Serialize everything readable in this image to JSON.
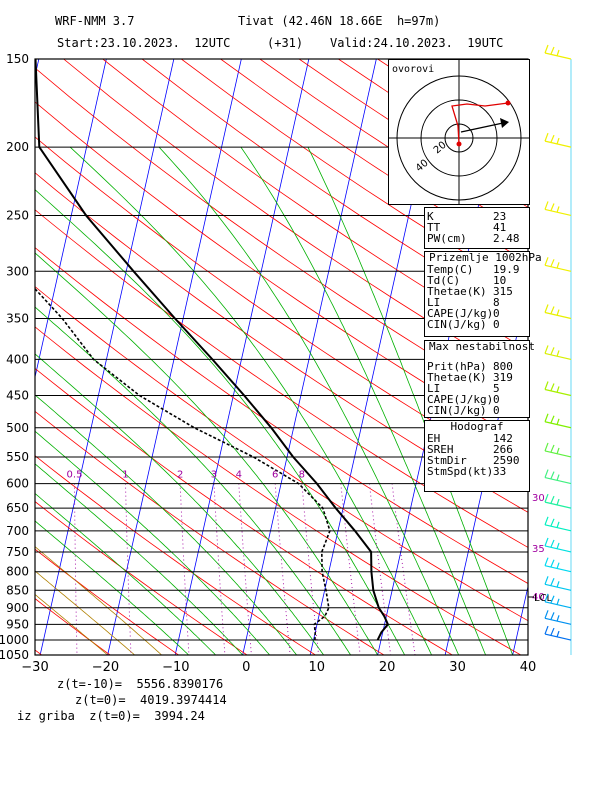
{
  "header": {
    "model": "WRF-NMM 3.7",
    "station": "Tivat (42.46N 18.66E  h=97m)",
    "start": "Start:23.10.2023.  12UTC",
    "lead": "(+31)",
    "valid": "Valid:24.10.2023.  19UTC"
  },
  "indices": {
    "rows": [
      {
        "k": "K",
        "v": "23"
      },
      {
        "k": "TT",
        "v": "41"
      },
      {
        "k": "PW(cm)",
        "v": "2.48"
      }
    ]
  },
  "surface": {
    "title": "Prizemlje 1002hPa",
    "rows": [
      {
        "k": "Temp(C)",
        "v": "19.9"
      },
      {
        "k": "Td(C)",
        "v": "10"
      },
      {
        "k": "Thetae(K)",
        "v": "315"
      },
      {
        "k": "LI",
        "v": "8"
      },
      {
        "k": "CAPE(J/kg)",
        "v": "0"
      },
      {
        "k": "CIN(J/kg)",
        "v": "0"
      }
    ]
  },
  "unstable": {
    "title": "Max nestabilnost",
    "rows": [
      {
        "k": "Prit(hPa)",
        "v": "800"
      },
      {
        "k": "Thetae(K)",
        "v": "319"
      },
      {
        "k": "LI",
        "v": "5"
      },
      {
        "k": "CAPE(J/kg)",
        "v": "0"
      },
      {
        "k": "CIN(J/kg)",
        "v": "0"
      }
    ]
  },
  "hodograph_panel": {
    "title": "Hodograf",
    "rows": [
      {
        "k": "EH",
        "v": "142"
      },
      {
        "k": "SREH",
        "v": "266"
      },
      {
        "k": "StmDir",
        "v": "2590"
      },
      {
        "k": "StmSpd(kt)",
        "v": "33"
      }
    ]
  },
  "hodograph": {
    "label": "ovorovi",
    "ring_labels": [
      "20",
      "40"
    ],
    "colors": {
      "wind": "#e00000",
      "storm": "#000000"
    }
  },
  "footer": {
    "line1": "z(t=-10)=  5556.8390176",
    "line2": "z(t=0)=  4019.3974414",
    "line3": "iz griba  z(t=0)=  3994.24"
  },
  "chart_data": {
    "type": "line",
    "subtype": "skew-T log-p diagram",
    "pressure_levels": [
      150,
      200,
      250,
      300,
      350,
      400,
      450,
      500,
      550,
      600,
      650,
      700,
      750,
      800,
      850,
      900,
      950,
      1000,
      1050
    ],
    "x_ticks": [
      "−30",
      "−20",
      "−10",
      "0",
      "10",
      "20",
      "30",
      "40"
    ],
    "xlim": [
      -30,
      40
    ],
    "ylim": [
      1050,
      150
    ],
    "mixing_ratio_labels": [
      "0.5",
      "1",
      "2",
      "3",
      "4",
      "6",
      "8"
    ],
    "temperature_label_values": [
      "30",
      "35",
      "40"
    ],
    "lcl_label": "LCL",
    "series": [
      {
        "role": "temperature",
        "color": "#000000",
        "points": [
          [
            1000,
            19.5
          ],
          [
            975,
            19.8
          ],
          [
            950,
            20.5
          ],
          [
            925,
            19.7
          ],
          [
            900,
            18.6
          ],
          [
            850,
            17.2
          ],
          [
            800,
            16.3
          ],
          [
            750,
            15.6
          ],
          [
            700,
            12.5
          ],
          [
            650,
            8.9
          ],
          [
            600,
            5.3
          ],
          [
            550,
            0.9
          ],
          [
            500,
            -3.3
          ],
          [
            450,
            -8.4
          ],
          [
            400,
            -14.3
          ],
          [
            350,
            -21.2
          ],
          [
            300,
            -28.9
          ],
          [
            250,
            -37.8
          ],
          [
            200,
            -47.0
          ],
          [
            150,
            -50.5
          ]
        ]
      },
      {
        "role": "dewpoint",
        "color": "#000000",
        "points": [
          [
            1000,
            10.2
          ],
          [
            975,
            10.0
          ],
          [
            950,
            9.6
          ],
          [
            925,
            10.9
          ],
          [
            900,
            11.2
          ],
          [
            850,
            10.2
          ],
          [
            800,
            9.0
          ],
          [
            750,
            8.3
          ],
          [
            700,
            8.8
          ],
          [
            650,
            7.0
          ],
          [
            600,
            2.6
          ],
          [
            550,
            -5.0
          ],
          [
            500,
            -14.7
          ],
          [
            450,
            -23.9
          ],
          [
            400,
            -31.9
          ],
          [
            350,
            -37.9
          ],
          [
            300,
            -45.9
          ],
          [
            250,
            -66.0
          ],
          [
            200,
            -79.0
          ],
          [
            150,
            -80.0
          ]
        ]
      }
    ],
    "wind_barbs": [
      {
        "p": 150,
        "color": "#f0f000"
      },
      {
        "p": 200,
        "color": "#f0f000"
      },
      {
        "p": 250,
        "color": "#f0f000"
      },
      {
        "p": 300,
        "color": "#f0f000"
      },
      {
        "p": 350,
        "color": "#e8f000"
      },
      {
        "p": 400,
        "color": "#d8f000"
      },
      {
        "p": 450,
        "color": "#a8f000"
      },
      {
        "p": 500,
        "color": "#80f000"
      },
      {
        "p": 550,
        "color": "#60f040"
      },
      {
        "p": 600,
        "color": "#40f080"
      },
      {
        "p": 650,
        "color": "#20f0a0"
      },
      {
        "p": 700,
        "color": "#00f0c0"
      },
      {
        "p": 750,
        "color": "#00e0e0"
      },
      {
        "p": 800,
        "color": "#00d8f0"
      },
      {
        "p": 850,
        "color": "#00c8f0"
      },
      {
        "p": 900,
        "color": "#00b0f0"
      },
      {
        "p": 950,
        "color": "#0090f0"
      },
      {
        "p": 1000,
        "color": "#0070f0"
      }
    ],
    "colors": {
      "isobar": "#000000",
      "isotherm": "#0000ff",
      "dry_adiabat": "#ff0000",
      "moist_adiabat": "#00b000",
      "mixing_ratio": "#a000a0",
      "moist_adiabat_hot": "#b08000"
    }
  }
}
